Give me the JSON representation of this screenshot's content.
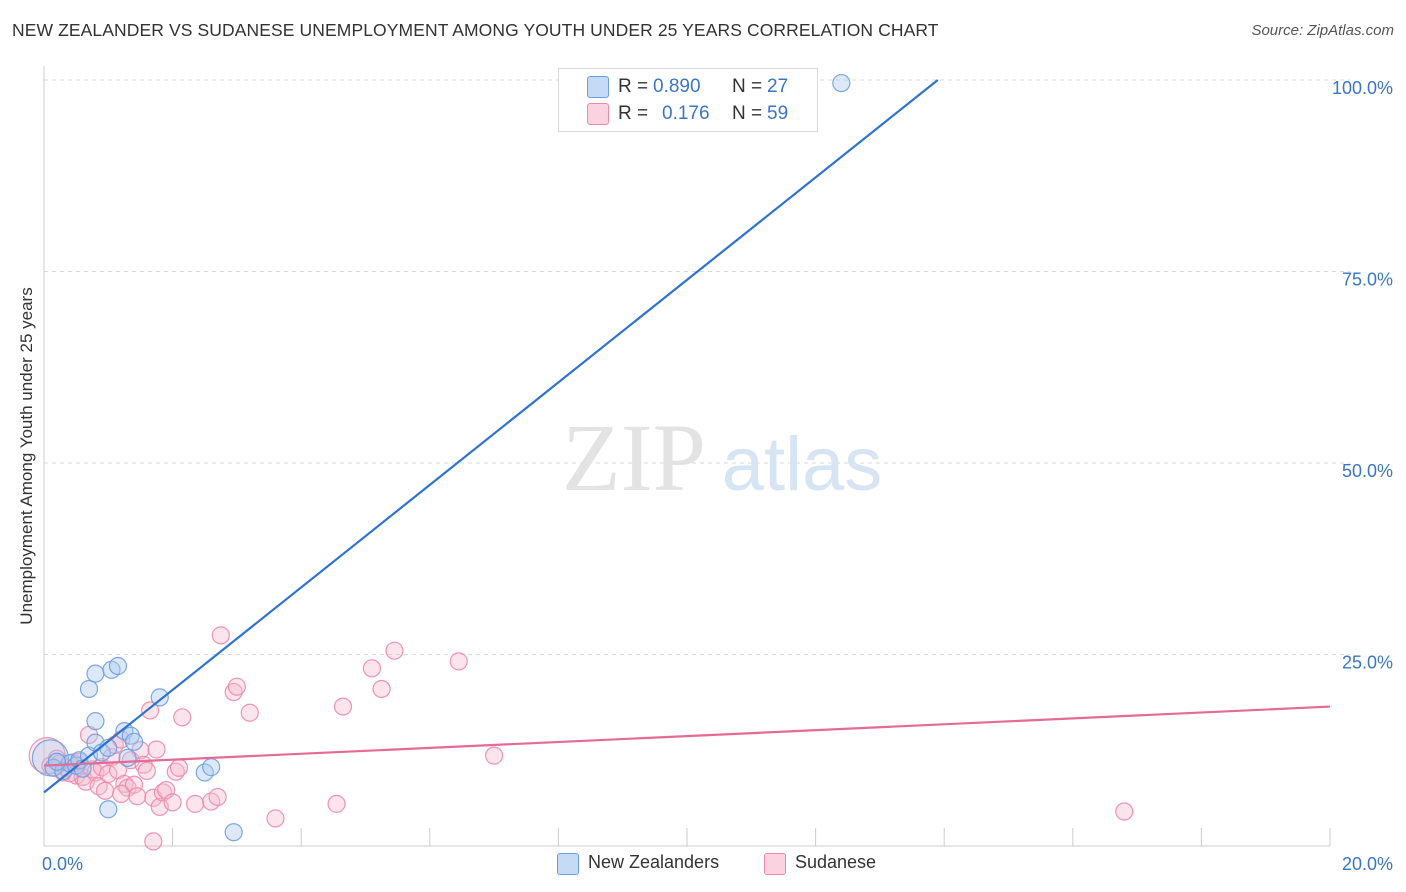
{
  "header": {
    "title": "NEW ZEALANDER VS SUDANESE UNEMPLOYMENT AMONG YOUTH UNDER 25 YEARS CORRELATION CHART",
    "source": "Source: ZipAtlas.com"
  },
  "watermark": {
    "zip": "ZIP",
    "atlas": "atlas"
  },
  "legend": {
    "rows": [
      {
        "r_label": "R =",
        "r_value": "0.890",
        "n_label": "N =",
        "n_value": "27"
      },
      {
        "r_label": "R =",
        "r_value": "0.176",
        "n_label": "N =",
        "n_value": "59"
      }
    ]
  },
  "bottom_legend": {
    "series1": "New Zealanders",
    "series2": "Sudanese"
  },
  "colors": {
    "blue_fill": "#a9c8ef",
    "blue_stroke": "#6d9ee0",
    "blue_line": "#2f72d0",
    "pink_fill": "#f6bccf",
    "pink_stroke": "#ec8aab",
    "pink_line": "#e56a96",
    "axis_text": "#3a76c4",
    "grid": "#d9d9d9"
  },
  "chart_data": {
    "type": "scatter",
    "title": "NEW ZEALANDER VS SUDANESE UNEMPLOYMENT AMONG YOUTH UNDER 25 YEARS CORRELATION CHART",
    "xlabel": "",
    "ylabel": "Unemployment Among Youth under 25 years",
    "xlim": [
      0,
      20
    ],
    "ylim": [
      0,
      100
    ],
    "x_tick_labels": [
      {
        "value": 0,
        "label": "0.0%"
      },
      {
        "value": 20,
        "label": "20.0%"
      }
    ],
    "y_tick_labels": [
      {
        "value": 25,
        "label": "25.0%"
      },
      {
        "value": 50,
        "label": "50.0%"
      },
      {
        "value": 75,
        "label": "75.0%"
      },
      {
        "value": 100,
        "label": "100.0%"
      }
    ],
    "series": [
      {
        "name": "New Zealanders",
        "R": 0.89,
        "N": 27,
        "trendline": {
          "x": [
            0,
            13.9
          ],
          "y": [
            7.0,
            100.0
          ]
        },
        "points": [
          {
            "x": 0.1,
            "y": 11.5,
            "big": true
          },
          {
            "x": 0.15,
            "y": 10.2
          },
          {
            "x": 0.3,
            "y": 9.8
          },
          {
            "x": 0.4,
            "y": 10.8
          },
          {
            "x": 0.5,
            "y": 10.5
          },
          {
            "x": 0.55,
            "y": 11.2
          },
          {
            "x": 0.6,
            "y": 10.1
          },
          {
            "x": 0.7,
            "y": 11.8
          },
          {
            "x": 0.8,
            "y": 13.5
          },
          {
            "x": 0.9,
            "y": 12.2
          },
          {
            "x": 0.7,
            "y": 20.5
          },
          {
            "x": 0.8,
            "y": 16.3
          },
          {
            "x": 0.8,
            "y": 22.5
          },
          {
            "x": 1.0,
            "y": 12.8
          },
          {
            "x": 1.0,
            "y": 4.8
          },
          {
            "x": 1.05,
            "y": 23.0
          },
          {
            "x": 1.15,
            "y": 23.5
          },
          {
            "x": 1.25,
            "y": 15.0
          },
          {
            "x": 1.3,
            "y": 11.5
          },
          {
            "x": 1.35,
            "y": 14.4
          },
          {
            "x": 1.4,
            "y": 13.6
          },
          {
            "x": 1.8,
            "y": 19.4
          },
          {
            "x": 2.5,
            "y": 9.6
          },
          {
            "x": 2.6,
            "y": 10.3
          },
          {
            "x": 2.95,
            "y": 1.8
          },
          {
            "x": 12.4,
            "y": 99.6
          },
          {
            "x": 0.2,
            "y": 11.0
          }
        ]
      },
      {
        "name": "Sudanese",
        "R": 0.176,
        "N": 59,
        "trendline": {
          "x": [
            0,
            20
          ],
          "y": [
            10.5,
            18.2
          ]
        },
        "points": [
          {
            "x": 0.05,
            "y": 11.8,
            "big": true
          },
          {
            "x": 0.1,
            "y": 10.5
          },
          {
            "x": 0.2,
            "y": 11.4
          },
          {
            "x": 0.25,
            "y": 10.8
          },
          {
            "x": 0.3,
            "y": 9.6
          },
          {
            "x": 0.35,
            "y": 10.2
          },
          {
            "x": 0.45,
            "y": 10.9
          },
          {
            "x": 0.5,
            "y": 9.2
          },
          {
            "x": 0.55,
            "y": 11.0
          },
          {
            "x": 0.6,
            "y": 9.0
          },
          {
            "x": 0.65,
            "y": 8.4
          },
          {
            "x": 0.7,
            "y": 14.5
          },
          {
            "x": 0.75,
            "y": 10.0
          },
          {
            "x": 0.8,
            "y": 9.6
          },
          {
            "x": 0.85,
            "y": 7.8
          },
          {
            "x": 0.9,
            "y": 10.3
          },
          {
            "x": 0.95,
            "y": 7.2
          },
          {
            "x": 1.0,
            "y": 9.4
          },
          {
            "x": 1.05,
            "y": 11.6
          },
          {
            "x": 1.1,
            "y": 13.2
          },
          {
            "x": 1.15,
            "y": 9.9
          },
          {
            "x": 1.2,
            "y": 13.9
          },
          {
            "x": 1.25,
            "y": 8.1
          },
          {
            "x": 1.3,
            "y": 7.6
          },
          {
            "x": 1.35,
            "y": 11.2
          },
          {
            "x": 1.4,
            "y": 8.0
          },
          {
            "x": 1.45,
            "y": 6.5
          },
          {
            "x": 1.5,
            "y": 12.5
          },
          {
            "x": 1.55,
            "y": 10.6
          },
          {
            "x": 1.6,
            "y": 9.8
          },
          {
            "x": 1.65,
            "y": 17.7
          },
          {
            "x": 1.7,
            "y": 6.3
          },
          {
            "x": 1.75,
            "y": 12.6
          },
          {
            "x": 1.8,
            "y": 5.1
          },
          {
            "x": 1.85,
            "y": 7.0
          },
          {
            "x": 1.9,
            "y": 7.3
          },
          {
            "x": 2.0,
            "y": 5.7
          },
          {
            "x": 2.05,
            "y": 9.7
          },
          {
            "x": 2.1,
            "y": 10.2
          },
          {
            "x": 2.15,
            "y": 16.8
          },
          {
            "x": 2.35,
            "y": 5.5
          },
          {
            "x": 2.6,
            "y": 5.8
          },
          {
            "x": 2.7,
            "y": 6.4
          },
          {
            "x": 2.75,
            "y": 27.5
          },
          {
            "x": 2.95,
            "y": 20.1
          },
          {
            "x": 3.0,
            "y": 20.8
          },
          {
            "x": 3.2,
            "y": 17.4
          },
          {
            "x": 3.6,
            "y": 3.6
          },
          {
            "x": 4.55,
            "y": 5.5
          },
          {
            "x": 4.65,
            "y": 18.2
          },
          {
            "x": 5.1,
            "y": 23.2
          },
          {
            "x": 5.25,
            "y": 20.5
          },
          {
            "x": 5.45,
            "y": 25.5
          },
          {
            "x": 6.45,
            "y": 24.1
          },
          {
            "x": 7.0,
            "y": 11.8
          },
          {
            "x": 16.8,
            "y": 4.5
          },
          {
            "x": 1.7,
            "y": 0.6
          },
          {
            "x": 0.4,
            "y": 9.5
          },
          {
            "x": 1.2,
            "y": 6.8
          }
        ]
      }
    ]
  }
}
